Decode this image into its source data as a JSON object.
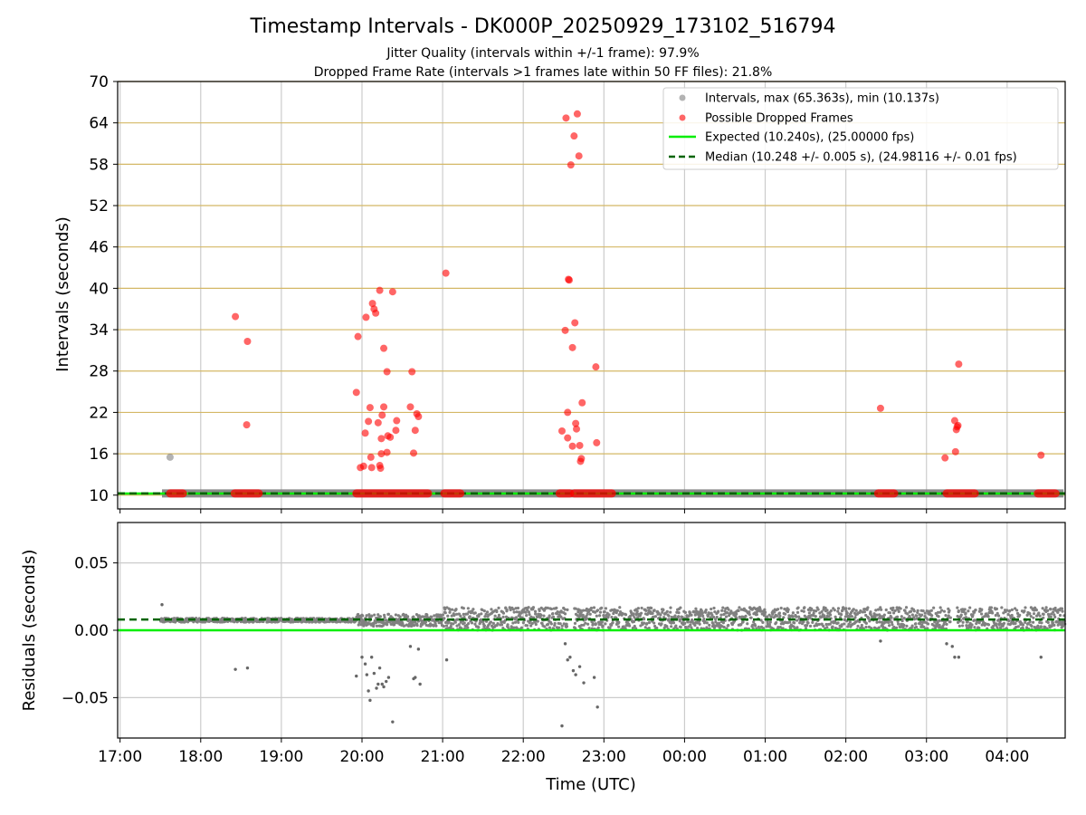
{
  "title": "Timestamp Intervals - DK000P_20250929_173102_516794",
  "subtitle_1": "Jitter Quality (intervals within +/-1 frame): 97.9%",
  "subtitle_2": "Dropped Frame Rate (intervals >1 frames late within 50 FF files): 21.8%",
  "xlabel": "Time (UTC)",
  "colors": {
    "intervals": "#808080",
    "dropped": "#ff0000",
    "expected": "#00ee00",
    "median": "#006400",
    "hgrid": "#d4b866",
    "grid": "#cccccc"
  },
  "chart_data": [
    {
      "type": "scatter",
      "ylabel": "Intervals (seconds)",
      "ylim": [
        8,
        70
      ],
      "yticks": [
        10,
        16,
        22,
        28,
        34,
        40,
        46,
        52,
        58,
        64,
        70
      ],
      "xlim": [
        16.97,
        28.72
      ],
      "grid": true,
      "legend_position": "top-right",
      "expected": 10.24,
      "median": 10.248,
      "series": [
        {
          "name": "Intervals, max (65.363s), min (10.137s)",
          "role": "intervals",
          "points": [
            [
              17.62,
              15.5
            ]
          ],
          "bands": [
            [
              17.52,
              28.7,
              10.25
            ]
          ]
        },
        {
          "name": "Possible Dropped Frames",
          "role": "dropped",
          "points": [
            [
              18.43,
              35.9
            ],
            [
              18.58,
              32.3
            ],
            [
              18.57,
              20.2
            ],
            [
              19.93,
              24.9
            ],
            [
              19.95,
              33.0
            ],
            [
              19.98,
              14.0
            ],
            [
              20.02,
              14.2
            ],
            [
              20.04,
              19.0
            ],
            [
              20.05,
              35.8
            ],
            [
              20.08,
              20.7
            ],
            [
              20.1,
              22.7
            ],
            [
              20.11,
              15.5
            ],
            [
              20.12,
              14.0
            ],
            [
              20.13,
              37.8
            ],
            [
              20.15,
              37.0
            ],
            [
              20.17,
              36.4
            ],
            [
              20.2,
              20.5
            ],
            [
              20.22,
              39.7
            ],
            [
              20.22,
              14.3
            ],
            [
              20.23,
              13.9
            ],
            [
              20.24,
              18.2
            ],
            [
              20.24,
              16.0
            ],
            [
              20.25,
              21.6
            ],
            [
              20.27,
              31.3
            ],
            [
              20.27,
              22.8
            ],
            [
              20.31,
              16.2
            ],
            [
              20.31,
              27.9
            ],
            [
              20.32,
              18.6
            ],
            [
              20.35,
              18.4
            ],
            [
              20.38,
              39.5
            ],
            [
              20.42,
              19.4
            ],
            [
              20.43,
              20.8
            ],
            [
              20.6,
              22.8
            ],
            [
              20.62,
              27.9
            ],
            [
              20.64,
              16.1
            ],
            [
              20.66,
              19.4
            ],
            [
              20.68,
              21.8
            ],
            [
              20.7,
              21.4
            ],
            [
              21.04,
              42.2
            ],
            [
              22.48,
              19.3
            ],
            [
              22.52,
              33.9
            ],
            [
              22.53,
              64.7
            ],
            [
              22.55,
              22.0
            ],
            [
              22.55,
              18.3
            ],
            [
              22.56,
              41.3
            ],
            [
              22.57,
              41.2
            ],
            [
              22.59,
              57.9
            ],
            [
              22.61,
              17.1
            ],
            [
              22.61,
              31.4
            ],
            [
              22.63,
              62.1
            ],
            [
              22.64,
              35.0
            ],
            [
              22.65,
              20.4
            ],
            [
              22.66,
              19.6
            ],
            [
              22.67,
              65.3
            ],
            [
              22.69,
              59.2
            ],
            [
              22.7,
              17.2
            ],
            [
              22.71,
              14.9
            ],
            [
              22.72,
              15.3
            ],
            [
              22.73,
              23.4
            ],
            [
              22.9,
              28.6
            ],
            [
              22.91,
              17.6
            ],
            [
              26.43,
              22.6
            ],
            [
              27.23,
              15.4
            ],
            [
              27.35,
              20.8
            ],
            [
              27.36,
              16.3
            ],
            [
              27.37,
              19.5
            ],
            [
              27.38,
              19.9
            ],
            [
              27.39,
              20.1
            ],
            [
              27.4,
              29.0
            ],
            [
              28.42,
              15.8
            ]
          ],
          "bands": [
            [
              17.62,
              17.78,
              10.25
            ],
            [
              18.42,
              18.72,
              10.25
            ],
            [
              19.93,
              20.82,
              10.25
            ],
            [
              21.02,
              21.22,
              10.25
            ],
            [
              22.45,
              22.58,
              10.25
            ],
            [
              22.63,
              23.1,
              10.25
            ],
            [
              26.4,
              26.6,
              10.25
            ],
            [
              27.25,
              27.6,
              10.25
            ],
            [
              28.38,
              28.6,
              10.25
            ]
          ]
        }
      ],
      "legend": {
        "intervals": "Intervals, max (65.363s), min (10.137s)",
        "dropped": "Possible Dropped Frames",
        "expected": "Expected (10.240s), (25.00000 fps)",
        "median": "Median (10.248 +/- 0.005 s), (24.98116 +/- 0.01 fps)"
      }
    },
    {
      "type": "scatter",
      "ylabel": "Residuals (seconds)",
      "ylim": [
        -0.08,
        0.08
      ],
      "yticks": [
        0.05,
        0.0,
        -0.05
      ],
      "ytick_labels": [
        "0.05",
        "0.00",
        "−0.05"
      ],
      "xlim": [
        16.97,
        28.72
      ],
      "grid": true,
      "expected": 0.0,
      "median": 0.008,
      "residual_clusters": [
        [
          17.5,
          19.93,
          0.006,
          0.009
        ],
        [
          19.93,
          21.02,
          0.003,
          0.012
        ],
        [
          21.02,
          22.55,
          0.0,
          0.017
        ],
        [
          22.63,
          27.3,
          0.0,
          0.017
        ],
        [
          27.38,
          28.72,
          0.0,
          0.017
        ]
      ],
      "residual_points": [
        [
          17.52,
          0.019
        ],
        [
          18.43,
          -0.029
        ],
        [
          18.58,
          -0.028
        ],
        [
          19.93,
          -0.034
        ],
        [
          20.0,
          -0.02
        ],
        [
          20.04,
          -0.025
        ],
        [
          20.06,
          -0.033
        ],
        [
          20.08,
          -0.045
        ],
        [
          20.1,
          -0.052
        ],
        [
          20.12,
          -0.02
        ],
        [
          20.15,
          -0.032
        ],
        [
          20.18,
          -0.043
        ],
        [
          20.2,
          -0.04
        ],
        [
          20.22,
          -0.028
        ],
        [
          20.25,
          -0.04
        ],
        [
          20.27,
          -0.042
        ],
        [
          20.3,
          -0.038
        ],
        [
          20.33,
          -0.035
        ],
        [
          20.38,
          -0.068
        ],
        [
          20.6,
          -0.012
        ],
        [
          20.64,
          -0.036
        ],
        [
          20.66,
          -0.035
        ],
        [
          20.7,
          -0.014
        ],
        [
          20.72,
          -0.04
        ],
        [
          21.05,
          -0.022
        ],
        [
          22.48,
          -0.071
        ],
        [
          22.52,
          -0.01
        ],
        [
          22.55,
          -0.022
        ],
        [
          22.58,
          -0.02
        ],
        [
          22.62,
          -0.03
        ],
        [
          22.65,
          -0.033
        ],
        [
          22.7,
          -0.027
        ],
        [
          22.75,
          -0.039
        ],
        [
          22.88,
          -0.035
        ],
        [
          22.92,
          -0.057
        ],
        [
          26.43,
          -0.008
        ],
        [
          27.25,
          -0.01
        ],
        [
          27.32,
          -0.012
        ],
        [
          27.35,
          -0.02
        ],
        [
          27.4,
          -0.02
        ],
        [
          28.42,
          -0.02
        ]
      ]
    }
  ],
  "xticks": [
    17,
    18,
    19,
    20,
    21,
    22,
    23,
    24,
    25,
    26,
    27,
    28
  ],
  "xtick_labels": [
    "17:00",
    "18:00",
    "19:00",
    "20:00",
    "21:00",
    "22:00",
    "23:00",
    "00:00",
    "01:00",
    "02:00",
    "03:00",
    "04:00"
  ]
}
